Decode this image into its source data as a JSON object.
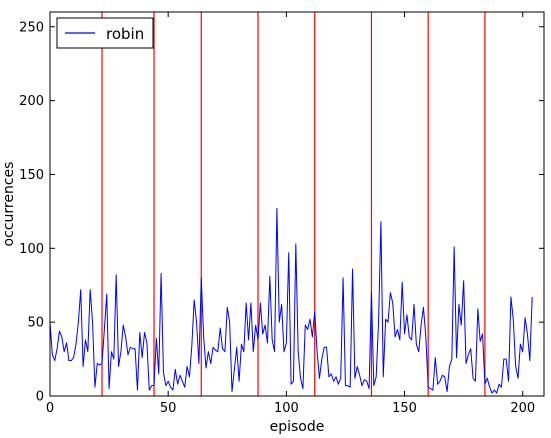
{
  "chart_data": {
    "type": "line",
    "xlabel": "episode",
    "ylabel": "occurrences",
    "xlim": [
      0,
      209
    ],
    "ylim": [
      0,
      260
    ],
    "xticks": [
      0,
      50,
      100,
      150,
      200
    ],
    "yticks": [
      0,
      50,
      100,
      150,
      200,
      250
    ],
    "grid": false,
    "legend": "top-left",
    "legend_entries": [
      "robin"
    ],
    "series_color": "#0000ff",
    "vline_color": "#ff0000",
    "vlines": [
      22,
      44,
      64,
      88,
      112,
      136,
      160,
      184
    ],
    "series": [
      {
        "name": "robin",
        "values": [
          50,
          28,
          24,
          32,
          44,
          40,
          30,
          36,
          24,
          24,
          26,
          35,
          50,
          72,
          20,
          38,
          30,
          72,
          50,
          6,
          22,
          21,
          22,
          45,
          69,
          5,
          30,
          25,
          82,
          20,
          30,
          48,
          40,
          28,
          33,
          32,
          32,
          4,
          43,
          26,
          43,
          36,
          4,
          7,
          7,
          39,
          15,
          83,
          16,
          7,
          10,
          6,
          4,
          18,
          8,
          14,
          10,
          6,
          20,
          13,
          34,
          65,
          50,
          22,
          80,
          40,
          19,
          30,
          22,
          33,
          31,
          30,
          46,
          32,
          30,
          60,
          50,
          3,
          18,
          33,
          10,
          35,
          30,
          63,
          38,
          63,
          30,
          48,
          38,
          63,
          42,
          48,
          36,
          81,
          38,
          30,
          127,
          50,
          62,
          30,
          36,
          97,
          8,
          10,
          103,
          30,
          12,
          5,
          48,
          45,
          52,
          40,
          57,
          30,
          12,
          25,
          33,
          33,
          13,
          15,
          10,
          13,
          8,
          12,
          80,
          7,
          7,
          6,
          86,
          12,
          20,
          14,
          7,
          11,
          10,
          5,
          70,
          7,
          13,
          50,
          118,
          13,
          52,
          50,
          70,
          63,
          40,
          45,
          38,
          77,
          42,
          55,
          40,
          38,
          62,
          35,
          30,
          48,
          60,
          40,
          6,
          5,
          4,
          26,
          8,
          10,
          14,
          13,
          3,
          20,
          25,
          101,
          26,
          62,
          48,
          78,
          22,
          28,
          32,
          12,
          10,
          59,
          37,
          42,
          8,
          12,
          6,
          2,
          4,
          2,
          8,
          6,
          25,
          25,
          10,
          67,
          52,
          20,
          12,
          35,
          30,
          53,
          42,
          24,
          67
        ]
      }
    ]
  }
}
